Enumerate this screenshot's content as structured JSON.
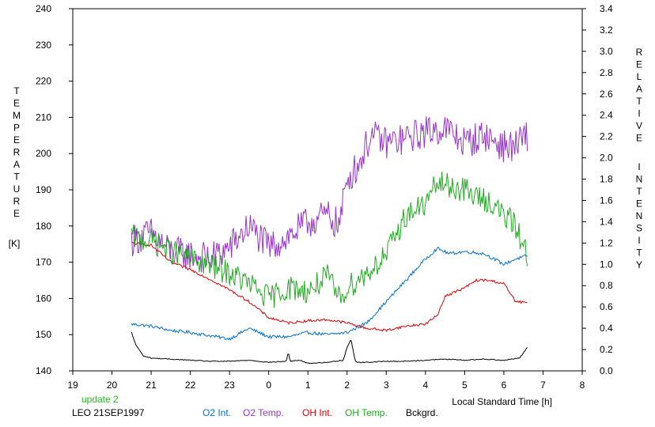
{
  "chart_data": {
    "type": "line",
    "title": "",
    "xlabel": "Local Standard Time [h]",
    "xlim": [
      19,
      8
    ],
    "x_ticks": [
      "19",
      "20",
      "21",
      "22",
      "23",
      "0",
      "1",
      "2",
      "3",
      "4",
      "5",
      "6",
      "7",
      "8"
    ],
    "ylabel_left": "TEMPERATURE [K]",
    "ylabel_left_letters": [
      "T",
      "E",
      "M",
      "P",
      "E",
      "R",
      "A",
      "T",
      "U",
      "R",
      "E"
    ],
    "ylabel_left_unit": "[K]",
    "ylim_left": [
      140,
      240
    ],
    "y_ticks_left": [
      "140",
      "150",
      "160",
      "170",
      "180",
      "190",
      "200",
      "210",
      "220",
      "230",
      "240"
    ],
    "ylabel_right": "RELATIVE INTENSITY",
    "ylabel_right_letters": [
      "R",
      "E",
      "L",
      "A",
      "T",
      "I",
      "V",
      "E"
    ],
    "ylabel_right_letters2": [
      "I",
      "N",
      "T",
      "E",
      "N",
      "S",
      "I",
      "T",
      "Y"
    ],
    "ylim_right": [
      0.0,
      3.4
    ],
    "y_ticks_right": [
      "0.0",
      "0.2",
      "0.4",
      "0.6",
      "0.8",
      "1.0",
      "1.2",
      "1.4",
      "1.6",
      "1.8",
      "2.0",
      "2.2",
      "2.4",
      "2.6",
      "2.8",
      "3.0",
      "3.2",
      "3.4"
    ],
    "grid": false,
    "legend_position": "bottom",
    "annotations": {
      "update": "update 2",
      "station": "LEO 21SEP1997"
    },
    "series": [
      {
        "name": "O2 Int.",
        "color": "#0070d0",
        "axis": "right",
        "noise": 0.015,
        "x": [
          20.5,
          21.0,
          21.5,
          22.0,
          22.5,
          23.0,
          23.5,
          0.0,
          0.5,
          1.0,
          1.5,
          2.0,
          2.5,
          3.0,
          3.5,
          4.0,
          4.3,
          4.6,
          5.0,
          5.5,
          6.0,
          6.3,
          6.6
        ],
        "y": [
          0.44,
          0.42,
          0.38,
          0.36,
          0.33,
          0.3,
          0.4,
          0.32,
          0.32,
          0.36,
          0.34,
          0.36,
          0.45,
          0.65,
          0.85,
          1.05,
          1.15,
          1.1,
          1.12,
          1.1,
          1.0,
          1.05,
          1.08
        ]
      },
      {
        "name": "O2 Temp.",
        "color": "#9933cc",
        "axis": "left",
        "noise": 4.5,
        "x": [
          20.5,
          21.0,
          21.5,
          22.0,
          22.5,
          23.0,
          23.5,
          0.0,
          0.5,
          1.0,
          1.5,
          1.8,
          2.0,
          2.3,
          2.6,
          3.0,
          3.5,
          4.0,
          4.5,
          5.0,
          5.5,
          6.0,
          6.3,
          6.6
        ],
        "y": [
          176,
          178,
          173,
          172,
          171,
          174,
          180,
          174,
          177,
          181,
          183,
          180,
          193,
          197,
          205,
          203,
          204,
          206,
          207,
          203,
          205,
          202,
          202,
          205
        ]
      },
      {
        "name": "OH Int.",
        "color": "#dd0000",
        "axis": "right",
        "noise": 0.012,
        "x": [
          20.5,
          21.0,
          21.5,
          22.0,
          22.5,
          23.0,
          23.5,
          0.0,
          0.5,
          1.0,
          1.5,
          2.0,
          2.5,
          3.0,
          3.5,
          4.0,
          4.3,
          4.5,
          5.0,
          5.3,
          5.6,
          6.0,
          6.3,
          6.6
        ],
        "y": [
          1.2,
          1.18,
          1.02,
          0.95,
          0.86,
          0.76,
          0.65,
          0.5,
          0.45,
          0.47,
          0.48,
          0.45,
          0.4,
          0.38,
          0.42,
          0.44,
          0.52,
          0.7,
          0.78,
          0.85,
          0.85,
          0.82,
          0.65,
          0.64
        ]
      },
      {
        "name": "OH Temp.",
        "color": "#22aa22",
        "axis": "left",
        "noise": 3.5,
        "x": [
          20.5,
          21.0,
          21.5,
          22.0,
          22.5,
          23.0,
          23.5,
          0.0,
          0.5,
          1.0,
          1.5,
          1.8,
          2.0,
          2.5,
          3.0,
          3.5,
          4.0,
          4.3,
          4.6,
          5.0,
          5.3,
          5.6,
          6.0,
          6.3,
          6.6
        ],
        "y": [
          177,
          176,
          173,
          171,
          169,
          167,
          164,
          160,
          163,
          162,
          166,
          160,
          163,
          167,
          172,
          183,
          186,
          192,
          191,
          190,
          188,
          187,
          183,
          180,
          172
        ]
      },
      {
        "name": "Bckgrd.",
        "color": "#000000",
        "axis": "right",
        "noise": 0.004,
        "x": [
          20.5,
          20.6,
          20.8,
          21.0,
          21.5,
          22.0,
          22.5,
          23.0,
          23.5,
          0.0,
          0.45,
          0.5,
          0.55,
          0.8,
          1.0,
          1.5,
          1.9,
          2.0,
          2.1,
          2.2,
          2.25,
          2.5,
          3.0,
          3.5,
          4.0,
          4.5,
          5.0,
          5.5,
          6.0,
          6.4,
          6.6
        ],
        "y": [
          0.36,
          0.25,
          0.14,
          0.12,
          0.11,
          0.1,
          0.09,
          0.09,
          0.1,
          0.08,
          0.09,
          0.18,
          0.09,
          0.1,
          0.07,
          0.08,
          0.1,
          0.22,
          0.3,
          0.1,
          0.08,
          0.08,
          0.09,
          0.09,
          0.1,
          0.11,
          0.1,
          0.11,
          0.1,
          0.12,
          0.22
        ]
      }
    ]
  }
}
